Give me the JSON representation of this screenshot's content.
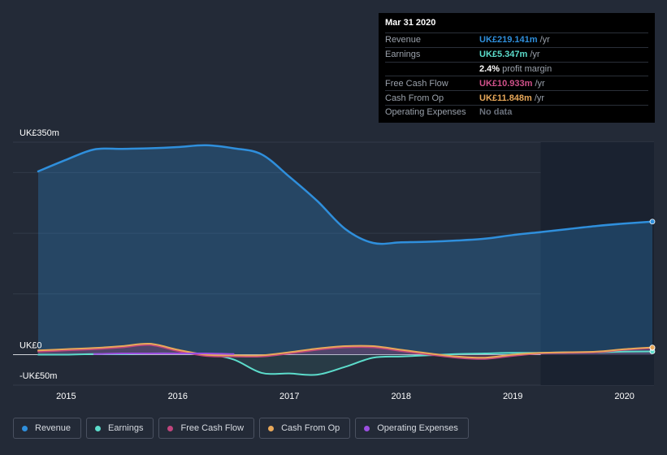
{
  "tooltip": {
    "date": "Mar 31 2020",
    "rows": [
      {
        "label": "Revenue",
        "value": "UK£219.141m",
        "unit": "/yr",
        "color": "#2f8fdc"
      },
      {
        "label": "Earnings",
        "value": "UK£5.347m",
        "unit": "/yr",
        "color": "#5cdccb"
      },
      {
        "label": "",
        "value": "2.4%",
        "unit": "profit margin",
        "color": "#ffffff"
      },
      {
        "label": "Free Cash Flow",
        "value": "UK£10.933m",
        "unit": "/yr",
        "color": "#d0518a"
      },
      {
        "label": "Cash From Op",
        "value": "UK£11.848m",
        "unit": "/yr",
        "color": "#e8a85a"
      },
      {
        "label": "Operating Expenses",
        "value": "No data",
        "unit": "",
        "color": "#6b717c"
      }
    ]
  },
  "legend": [
    {
      "label": "Revenue",
      "color": "#2f8fdc"
    },
    {
      "label": "Earnings",
      "color": "#5cdccb"
    },
    {
      "label": "Free Cash Flow",
      "color": "#c0457d"
    },
    {
      "label": "Cash From Op",
      "color": "#e8a85a"
    },
    {
      "label": "Operating Expenses",
      "color": "#9b4fe0"
    }
  ],
  "chart_data": {
    "type": "area",
    "ylim": [
      -50,
      350
    ],
    "xlim": [
      2014.66,
      2020.25
    ],
    "highlight_start": 2019.25,
    "y_tick_labels": [
      {
        "value": 350,
        "label": "UK£350m"
      },
      {
        "value": 0,
        "label": "UK£0"
      },
      {
        "value": -50,
        "label": "-UK£50m"
      }
    ],
    "gridlines": [
      350,
      300,
      200,
      100,
      0
    ],
    "x_ticks": [
      {
        "value": 2015,
        "label": "2015"
      },
      {
        "value": 2016,
        "label": "2016"
      },
      {
        "value": 2017,
        "label": "2017"
      },
      {
        "value": 2018,
        "label": "2018"
      },
      {
        "value": 2019,
        "label": "2019"
      },
      {
        "value": 2020,
        "label": "2020"
      }
    ],
    "series": [
      {
        "name": "Revenue",
        "color": "#2f8fdc",
        "fill": true,
        "points": [
          [
            2014.75,
            302
          ],
          [
            2015.0,
            321
          ],
          [
            2015.25,
            338
          ],
          [
            2015.5,
            339
          ],
          [
            2015.75,
            340
          ],
          [
            2016.0,
            342
          ],
          [
            2016.25,
            345
          ],
          [
            2016.5,
            340
          ],
          [
            2016.75,
            330
          ],
          [
            2017.0,
            293
          ],
          [
            2017.25,
            253
          ],
          [
            2017.5,
            207
          ],
          [
            2017.75,
            184
          ],
          [
            2018.0,
            185
          ],
          [
            2018.25,
            186
          ],
          [
            2018.5,
            188
          ],
          [
            2018.75,
            191
          ],
          [
            2019.0,
            197
          ],
          [
            2019.25,
            202
          ],
          [
            2019.5,
            207
          ],
          [
            2019.75,
            212
          ],
          [
            2020.0,
            216
          ],
          [
            2020.25,
            219.141
          ]
        ]
      },
      {
        "name": "Earnings",
        "color": "#5cdccb",
        "fill": true,
        "points": [
          [
            2014.75,
            0
          ],
          [
            2015.0,
            0
          ],
          [
            2015.25,
            1
          ],
          [
            2015.5,
            1
          ],
          [
            2015.75,
            2
          ],
          [
            2016.0,
            2
          ],
          [
            2016.25,
            1
          ],
          [
            2016.5,
            -8
          ],
          [
            2016.75,
            -30
          ],
          [
            2017.0,
            -31
          ],
          [
            2017.25,
            -33
          ],
          [
            2017.5,
            -20
          ],
          [
            2017.75,
            -5
          ],
          [
            2018.0,
            -3
          ],
          [
            2018.25,
            -1
          ],
          [
            2018.5,
            1
          ],
          [
            2018.75,
            2
          ],
          [
            2019.0,
            3
          ],
          [
            2019.25,
            3
          ],
          [
            2019.5,
            4
          ],
          [
            2019.75,
            4
          ],
          [
            2020.0,
            5
          ],
          [
            2020.25,
            5.347
          ]
        ]
      },
      {
        "name": "Free Cash Flow",
        "color": "#c0457d",
        "fill": true,
        "points": [
          [
            2014.75,
            5
          ],
          [
            2015.0,
            7
          ],
          [
            2015.25,
            9
          ],
          [
            2015.5,
            12
          ],
          [
            2015.75,
            16
          ],
          [
            2016.0,
            6
          ],
          [
            2016.25,
            -2
          ],
          [
            2016.5,
            -3
          ],
          [
            2016.75,
            -3
          ],
          [
            2017.0,
            2
          ],
          [
            2017.25,
            8
          ],
          [
            2017.5,
            12
          ],
          [
            2017.75,
            12
          ],
          [
            2018.0,
            6
          ],
          [
            2018.25,
            0
          ],
          [
            2018.5,
            -5
          ],
          [
            2018.75,
            -7
          ],
          [
            2019.0,
            -2
          ],
          [
            2019.25,
            2
          ],
          [
            2019.5,
            3
          ],
          [
            2019.75,
            4
          ],
          [
            2020.0,
            8
          ],
          [
            2020.25,
            10.933
          ]
        ]
      },
      {
        "name": "Cash From Op",
        "color": "#e8a85a",
        "fill": false,
        "points": [
          [
            2014.75,
            7
          ],
          [
            2015.0,
            9
          ],
          [
            2015.25,
            11
          ],
          [
            2015.5,
            14
          ],
          [
            2015.75,
            18
          ],
          [
            2016.0,
            8
          ],
          [
            2016.25,
            0
          ],
          [
            2016.5,
            -1
          ],
          [
            2016.75,
            -1
          ],
          [
            2017.0,
            4
          ],
          [
            2017.25,
            10
          ],
          [
            2017.5,
            14
          ],
          [
            2017.75,
            14
          ],
          [
            2018.0,
            8
          ],
          [
            2018.25,
            2
          ],
          [
            2018.5,
            -3
          ],
          [
            2018.75,
            -5
          ],
          [
            2019.0,
            0
          ],
          [
            2019.25,
            3
          ],
          [
            2019.5,
            4
          ],
          [
            2019.75,
            5
          ],
          [
            2020.0,
            9
          ],
          [
            2020.25,
            11.848
          ]
        ]
      },
      {
        "name": "Operating Expenses",
        "color": "#9b4fe0",
        "fill": false,
        "points": [
          [
            2015.25,
            1
          ],
          [
            2015.5,
            2
          ],
          [
            2015.75,
            2
          ],
          [
            2016.0,
            2
          ],
          [
            2016.25,
            2
          ],
          [
            2016.5,
            1
          ]
        ]
      }
    ]
  }
}
